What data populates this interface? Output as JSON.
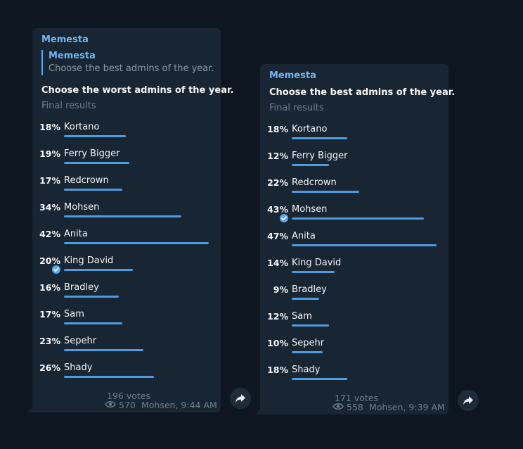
{
  "polls": [
    {
      "sender": "Memesta",
      "reply": {
        "name": "Memesta",
        "text": "Choose the best admins of the year."
      },
      "question": "Choose the worst admins of the year.",
      "subtitle": "Final results",
      "options": [
        {
          "percent": "18%",
          "label": "Kortano",
          "value": 18
        },
        {
          "percent": "19%",
          "label": "Ferry Bigger",
          "value": 19
        },
        {
          "percent": "17%",
          "label": "Redcrown",
          "value": 17
        },
        {
          "percent": "34%",
          "label": "Mohsen",
          "value": 34
        },
        {
          "percent": "42%",
          "label": "Anita",
          "value": 42
        },
        {
          "percent": "20%",
          "label": "King David",
          "value": 20,
          "chosen": true
        },
        {
          "percent": "16%",
          "label": "Bradley",
          "value": 16
        },
        {
          "percent": "17%",
          "label": "Sam",
          "value": 17
        },
        {
          "percent": "23%",
          "label": "Sepehr",
          "value": 23
        },
        {
          "percent": "26%",
          "label": "Shady",
          "value": 26
        }
      ],
      "votes": "196 votes",
      "views": "570",
      "author_time": "Mohsen, 9:44 AM"
    },
    {
      "sender": "Memesta",
      "question": "Choose the best admins of the year.",
      "subtitle": "Final results",
      "options": [
        {
          "percent": "18%",
          "label": "Kortano",
          "value": 18
        },
        {
          "percent": "12%",
          "label": "Ferry Bigger",
          "value": 12
        },
        {
          "percent": "22%",
          "label": "Redcrown",
          "value": 22
        },
        {
          "percent": "43%",
          "label": "Mohsen",
          "value": 43,
          "chosen": true
        },
        {
          "percent": "47%",
          "label": "Anita",
          "value": 47
        },
        {
          "percent": "14%",
          "label": "King David",
          "value": 14
        },
        {
          "percent": "9%",
          "label": "Bradley",
          "value": 9
        },
        {
          "percent": "12%",
          "label": "Sam",
          "value": 12
        },
        {
          "percent": "10%",
          "label": "Sepehr",
          "value": 10
        },
        {
          "percent": "18%",
          "label": "Shady",
          "value": 18
        }
      ],
      "votes": "171 votes",
      "views": "558",
      "author_time": "Mohsen, 9:39 AM"
    }
  ],
  "colors": {
    "background": "#0e1621",
    "bubble": "#182533",
    "accent": "#4f9be0",
    "sender": "#71b5f2"
  },
  "icons": {
    "views": "eye-icon",
    "chosen": "check-circle-icon",
    "forward": "share-arrow-icon"
  }
}
